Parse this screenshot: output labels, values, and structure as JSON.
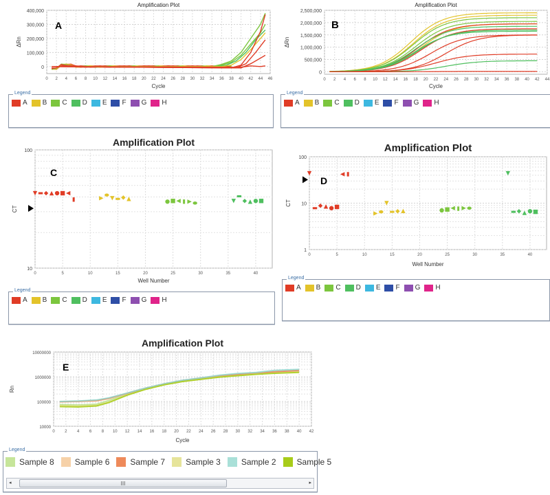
{
  "legend_title": "Legend",
  "wells_legend": [
    {
      "label": "A",
      "color": "#e03c26"
    },
    {
      "label": "B",
      "color": "#e3c32a"
    },
    {
      "label": "C",
      "color": "#7cc63e"
    },
    {
      "label": "D",
      "color": "#4fbf5f"
    },
    {
      "label": "E",
      "color": "#3db8e0"
    },
    {
      "label": "F",
      "color": "#2e4ea6"
    },
    {
      "label": "G",
      "color": "#8e4fb0"
    },
    {
      "label": "H",
      "color": "#e0248a"
    }
  ],
  "chart_data": [
    {
      "panel_label": "A",
      "type": "line",
      "title": "Amplification Plot",
      "xlabel": "Cycle",
      "ylabel": "ΔRn",
      "xlim": [
        0,
        46
      ],
      "ylim": [
        -50000,
        400000
      ],
      "grid": true,
      "xticks": [
        "0",
        "2",
        "4",
        "6",
        "8",
        "10",
        "12",
        "14",
        "16",
        "18",
        "20",
        "22",
        "24",
        "26",
        "28",
        "30",
        "32",
        "34",
        "36",
        "38",
        "40",
        "42",
        "44",
        "46"
      ],
      "yticks": [
        "0",
        "100,000",
        "200,000",
        "300,000",
        "400,000"
      ],
      "ytick_values": [
        0,
        100000,
        200000,
        300000,
        400000
      ],
      "series": [
        {
          "name": "C",
          "color": "#7cc63e",
          "x": [
            1,
            34,
            36,
            38,
            40,
            42,
            44,
            45
          ],
          "y": [
            0,
            0,
            15000,
            40000,
            100000,
            200000,
            300000,
            380000
          ]
        },
        {
          "name": "C",
          "color": "#7cc63e",
          "x": [
            1,
            34,
            36,
            38,
            40,
            42,
            44,
            45
          ],
          "y": [
            0,
            0,
            10000,
            30000,
            80000,
            160000,
            240000,
            300000
          ]
        },
        {
          "name": "D",
          "color": "#4fbf5f",
          "x": [
            1,
            35,
            37,
            39,
            41,
            43,
            45
          ],
          "y": [
            0,
            0,
            10000,
            40000,
            100000,
            190000,
            260000
          ]
        },
        {
          "name": "B",
          "color": "#e3c32a",
          "x": [
            1,
            36,
            38,
            40,
            42,
            44,
            45
          ],
          "y": [
            0,
            0,
            10000,
            50000,
            120000,
            200000,
            240000
          ]
        },
        {
          "name": "A",
          "color": "#e03c26",
          "x": [
            1,
            38,
            40,
            42,
            44,
            45
          ],
          "y": [
            0,
            -10000,
            10000,
            100000,
            250000,
            370000
          ]
        },
        {
          "name": "A",
          "color": "#e03c26",
          "x": [
            1,
            39,
            41,
            43,
            45
          ],
          "y": [
            0,
            -10000,
            20000,
            100000,
            190000
          ]
        },
        {
          "name": "A",
          "color": "#e03c26",
          "x": [
            1,
            40,
            42,
            44,
            45
          ],
          "y": [
            0,
            -10000,
            20000,
            60000,
            80000
          ]
        },
        {
          "name": "A",
          "color": "#e03c26",
          "x": [
            1,
            40,
            42,
            44,
            45
          ],
          "y": [
            0,
            -5000,
            5000,
            0,
            5000
          ]
        }
      ]
    },
    {
      "panel_label": "B",
      "type": "line",
      "title": "Amplification Plot",
      "xlabel": "Cycle",
      "ylabel": "ΔRn",
      "xlim": [
        0,
        44
      ],
      "ylim": [
        -100000,
        2500000
      ],
      "grid": true,
      "xticks": [
        "0",
        "2",
        "4",
        "6",
        "8",
        "10",
        "12",
        "14",
        "16",
        "18",
        "20",
        "22",
        "24",
        "26",
        "28",
        "30",
        "32",
        "34",
        "36",
        "38",
        "40",
        "42",
        "44"
      ],
      "yticks": [
        "0",
        "500,000",
        "1,000,000",
        "1,500,000",
        "2,000,000",
        "2,500,000"
      ],
      "ytick_values": [
        0,
        500000,
        1000000,
        1500000,
        2000000,
        2500000
      ],
      "series": [
        {
          "name": "B",
          "color": "#e3c32a",
          "plateau": 2400000,
          "mid": 17
        },
        {
          "name": "B",
          "color": "#e3c32a",
          "plateau": 2300000,
          "mid": 17.5
        },
        {
          "name": "C",
          "color": "#7cc63e",
          "plateau": 2200000,
          "mid": 17.5
        },
        {
          "name": "C",
          "color": "#7cc63e",
          "plateau": 2050000,
          "mid": 18
        },
        {
          "name": "B",
          "color": "#e3c32a",
          "plateau": 1950000,
          "mid": 19
        },
        {
          "name": "A",
          "color": "#e03c26",
          "plateau": 1950000,
          "mid": 18.5
        },
        {
          "name": "D",
          "color": "#4fbf5f",
          "plateau": 1850000,
          "mid": 18
        },
        {
          "name": "A",
          "color": "#e03c26",
          "plateau": 1750000,
          "mid": 19
        },
        {
          "name": "D",
          "color": "#4fbf5f",
          "plateau": 1700000,
          "mid": 18.5
        },
        {
          "name": "D",
          "color": "#4fbf5f",
          "plateau": 1650000,
          "mid": 18
        },
        {
          "name": "A",
          "color": "#e03c26",
          "plateau": 1500000,
          "mid": 21
        },
        {
          "name": "A",
          "color": "#e03c26",
          "plateau": 1500000,
          "mid": 24
        },
        {
          "name": "A",
          "color": "#e03c26",
          "plateau": 720000,
          "mid": 22
        },
        {
          "name": "D",
          "color": "#4fbf5f",
          "plateau": 450000,
          "mid": 24
        },
        {
          "name": "A",
          "color": "#e03c26",
          "plateau": 15000,
          "mid": 20
        }
      ]
    },
    {
      "panel_label": "C",
      "type": "scatter",
      "title": "Amplification Plot",
      "xlabel": "Well Number",
      "ylabel": "CT",
      "xscale": "linear",
      "yscale": "log",
      "xlim": [
        0,
        43
      ],
      "ylim": [
        10,
        100
      ],
      "grid": true,
      "xticks": [
        "0",
        "5",
        "10",
        "15",
        "20",
        "25",
        "30",
        "35",
        "40"
      ],
      "xtick_values": [
        0,
        5,
        10,
        15,
        20,
        25,
        30,
        35,
        40
      ],
      "yticks": [
        "10",
        "100"
      ],
      "ytick_values": [
        10,
        100
      ],
      "threshold_marker": 32,
      "points": [
        {
          "x": 0,
          "y": 43,
          "g": "A",
          "m": "tri-down"
        },
        {
          "x": 1,
          "y": 43,
          "g": "A",
          "m": "dash"
        },
        {
          "x": 2,
          "y": 43,
          "g": "A",
          "m": "diamond"
        },
        {
          "x": 3,
          "y": 43,
          "g": "A",
          "m": "tri-up"
        },
        {
          "x": 4,
          "y": 43,
          "g": "A",
          "m": "circle"
        },
        {
          "x": 5,
          "y": 43,
          "g": "A",
          "m": "square"
        },
        {
          "x": 6,
          "y": 43,
          "g": "A",
          "m": "tri-left"
        },
        {
          "x": 7,
          "y": 38,
          "g": "A",
          "m": "bar"
        },
        {
          "x": 12,
          "y": 39,
          "g": "B",
          "m": "tri-right"
        },
        {
          "x": 13,
          "y": 41.5,
          "g": "B",
          "m": "hex"
        },
        {
          "x": 14,
          "y": 39,
          "g": "B",
          "m": "tri-down"
        },
        {
          "x": 15,
          "y": 38.5,
          "g": "B",
          "m": "dash"
        },
        {
          "x": 16,
          "y": 39.5,
          "g": "B",
          "m": "diamond"
        },
        {
          "x": 17,
          "y": 38.5,
          "g": "B",
          "m": "tri-up"
        },
        {
          "x": 24,
          "y": 36.5,
          "g": "C",
          "m": "circle"
        },
        {
          "x": 25,
          "y": 37,
          "g": "C",
          "m": "square"
        },
        {
          "x": 26,
          "y": 37,
          "g": "C",
          "m": "tri-left"
        },
        {
          "x": 27,
          "y": 36.5,
          "g": "C",
          "m": "bar"
        },
        {
          "x": 28,
          "y": 36.5,
          "g": "C",
          "m": "tri-right"
        },
        {
          "x": 29,
          "y": 35.5,
          "g": "C",
          "m": "hex"
        },
        {
          "x": 36,
          "y": 37,
          "g": "D",
          "m": "tri-down"
        },
        {
          "x": 37,
          "y": 40.5,
          "g": "D",
          "m": "dash"
        },
        {
          "x": 38,
          "y": 37,
          "g": "D",
          "m": "diamond"
        },
        {
          "x": 39,
          "y": 36.5,
          "g": "D",
          "m": "tri-up"
        },
        {
          "x": 40,
          "y": 37,
          "g": "D",
          "m": "circle"
        },
        {
          "x": 41,
          "y": 37,
          "g": "D",
          "m": "square"
        }
      ]
    },
    {
      "panel_label": "D",
      "type": "scatter",
      "title": "Amplification Plot",
      "xlabel": "Well Number",
      "ylabel": "CT",
      "xscale": "linear",
      "yscale": "log",
      "xlim": [
        0,
        43
      ],
      "ylim": [
        1,
        100
      ],
      "grid": true,
      "xticks": [
        "0",
        "5",
        "10",
        "15",
        "20",
        "25",
        "30",
        "35",
        "40"
      ],
      "xtick_values": [
        0,
        5,
        10,
        15,
        20,
        25,
        30,
        35,
        40
      ],
      "yticks": [
        "1",
        "10",
        "100"
      ],
      "ytick_values": [
        1,
        10,
        100
      ],
      "threshold_marker": 32,
      "points": [
        {
          "x": 0,
          "y": 44,
          "g": "A",
          "m": "tri-down"
        },
        {
          "x": 1,
          "y": 7.8,
          "g": "A",
          "m": "dash"
        },
        {
          "x": 2,
          "y": 8.8,
          "g": "A",
          "m": "diamond"
        },
        {
          "x": 3,
          "y": 8.5,
          "g": "A",
          "m": "tri-up"
        },
        {
          "x": 4,
          "y": 7.8,
          "g": "A",
          "m": "circle"
        },
        {
          "x": 5,
          "y": 8.3,
          "g": "A",
          "m": "square"
        },
        {
          "x": 6,
          "y": 42,
          "g": "A",
          "m": "tri-left"
        },
        {
          "x": 7,
          "y": 42,
          "g": "A",
          "m": "bar"
        },
        {
          "x": 12,
          "y": 6,
          "g": "B",
          "m": "tri-right"
        },
        {
          "x": 13,
          "y": 6.5,
          "g": "B",
          "m": "hex"
        },
        {
          "x": 14,
          "y": 10,
          "g": "B",
          "m": "tri-down"
        },
        {
          "x": 15,
          "y": 6.5,
          "g": "B",
          "m": "dash"
        },
        {
          "x": 16,
          "y": 6.7,
          "g": "B",
          "m": "diamond"
        },
        {
          "x": 17,
          "y": 6.8,
          "g": "B",
          "m": "tri-up"
        },
        {
          "x": 24,
          "y": 7,
          "g": "C",
          "m": "circle"
        },
        {
          "x": 25,
          "y": 7.3,
          "g": "C",
          "m": "square"
        },
        {
          "x": 26,
          "y": 7.8,
          "g": "C",
          "m": "tri-left"
        },
        {
          "x": 27,
          "y": 7.6,
          "g": "C",
          "m": "bar"
        },
        {
          "x": 28,
          "y": 7.8,
          "g": "C",
          "m": "tri-right"
        },
        {
          "x": 29,
          "y": 7.8,
          "g": "C",
          "m": "hex"
        },
        {
          "x": 36,
          "y": 44,
          "g": "D",
          "m": "tri-down"
        },
        {
          "x": 37,
          "y": 6.5,
          "g": "D",
          "m": "dash"
        },
        {
          "x": 38,
          "y": 6.7,
          "g": "D",
          "m": "diamond"
        },
        {
          "x": 39,
          "y": 6.2,
          "g": "D",
          "m": "tri-up"
        },
        {
          "x": 40,
          "y": 6.7,
          "g": "D",
          "m": "circle"
        },
        {
          "x": 41,
          "y": 6.5,
          "g": "D",
          "m": "square"
        }
      ]
    },
    {
      "panel_label": "E",
      "type": "line",
      "title": "Amplification Plot",
      "xlabel": "Cycle",
      "ylabel": "Rn",
      "yscale": "log",
      "xlim": [
        0,
        42
      ],
      "ylim": [
        10000,
        10000000
      ],
      "grid": true,
      "xticks": [
        "0",
        "2",
        "4",
        "6",
        "8",
        "10",
        "12",
        "14",
        "16",
        "18",
        "20",
        "22",
        "24",
        "26",
        "28",
        "30",
        "32",
        "34",
        "36",
        "38",
        "40",
        "42"
      ],
      "yticks": [
        "10000",
        "100000",
        "1000000",
        "10000000"
      ],
      "ytick_values": [
        10000,
        100000,
        1000000,
        10000000
      ],
      "series": [
        {
          "name": "Sample 8",
          "color": "#b8e08a",
          "x": [
            1,
            4,
            7,
            9,
            12,
            15,
            18,
            21,
            24,
            27,
            30,
            33,
            36,
            40
          ],
          "y": [
            75000,
            72000,
            78000,
            110000,
            200000,
            330000,
            500000,
            680000,
            850000,
            1050000,
            1200000,
            1350000,
            1500000,
            1700000
          ]
        },
        {
          "name": "Sample 6",
          "color": "#f3c79a",
          "x": [
            1,
            4,
            7,
            9,
            12,
            15,
            18,
            21,
            24,
            27,
            30,
            33,
            36,
            40
          ],
          "y": [
            95000,
            100000,
            105000,
            130000,
            210000,
            340000,
            510000,
            700000,
            880000,
            1080000,
            1250000,
            1400000,
            1550000,
            1750000
          ]
        },
        {
          "name": "Sample 7",
          "color": "#e8845a",
          "x": [
            1,
            4,
            7,
            9,
            12,
            15,
            18,
            21,
            24,
            27,
            30,
            33,
            36,
            40
          ],
          "y": [
            98000,
            102000,
            110000,
            135000,
            215000,
            345000,
            515000,
            705000,
            885000,
            1085000,
            1260000,
            1420000,
            1580000,
            1800000
          ]
        },
        {
          "name": "Sample 3",
          "color": "#dede7a",
          "x": [
            1,
            4,
            7,
            9,
            12,
            15,
            18,
            21,
            24,
            27,
            30,
            33,
            36,
            40
          ],
          "y": [
            68000,
            65000,
            70000,
            95000,
            185000,
            315000,
            480000,
            650000,
            800000,
            980000,
            1120000,
            1280000,
            1400000,
            1550000
          ]
        },
        {
          "name": "Sample 2",
          "color": "#8fd6cc",
          "x": [
            1,
            4,
            7,
            9,
            12,
            15,
            18,
            21,
            24,
            27,
            30,
            33,
            36,
            40
          ],
          "y": [
            100000,
            105000,
            115000,
            140000,
            220000,
            350000,
            520000,
            720000,
            900000,
            1150000,
            1350000,
            1500000,
            1800000,
            2000000
          ]
        },
        {
          "name": "Sample 5",
          "color": "#a8cc1a",
          "x": [
            1,
            4,
            7,
            9,
            12,
            15,
            18,
            21,
            24,
            27,
            30,
            33,
            36,
            40
          ],
          "y": [
            62000,
            60000,
            66000,
            90000,
            180000,
            310000,
            470000,
            640000,
            790000,
            960000,
            1100000,
            1250000,
            1380000,
            1500000
          ]
        }
      ]
    }
  ],
  "sample_legend": [
    {
      "label": "Sample 8",
      "color": "#c6e59a"
    },
    {
      "label": "Sample 6",
      "color": "#f6d1a8"
    },
    {
      "label": "Sample 7",
      "color": "#ee8a5a"
    },
    {
      "label": "Sample 3",
      "color": "#e6e49a"
    },
    {
      "label": "Sample 2",
      "color": "#a9e0d8"
    },
    {
      "label": "Sample 5",
      "color": "#a8cc1a"
    }
  ],
  "scrollbar": {
    "thumb_grip": "III",
    "left_arrow": "◂",
    "right_arrow": "▸"
  }
}
